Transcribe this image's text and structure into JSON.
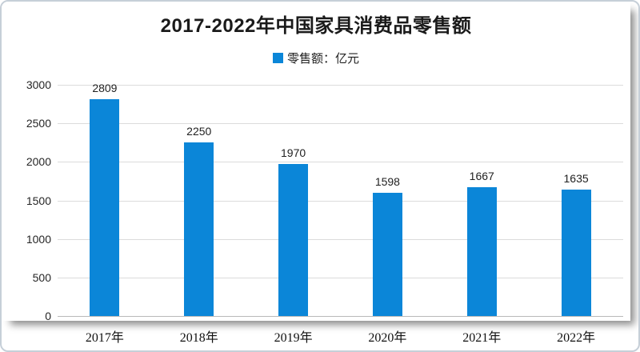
{
  "chart": {
    "title": "2017-2022年中国家具消费品零售额",
    "legend_label": "零售额：亿元"
  },
  "chart_data": {
    "type": "bar",
    "title": "2017-2022年中国家具消费品零售额",
    "legend": [
      "零售额：亿元"
    ],
    "legend_position": "top",
    "categories": [
      "2017年",
      "2018年",
      "2019年",
      "2020年",
      "2021年",
      "2022年"
    ],
    "values": [
      2809,
      2250,
      1970,
      1598,
      1667,
      1635
    ],
    "xlabel": "",
    "ylabel": "",
    "ylim": [
      0,
      3000
    ],
    "yticks": [
      0,
      500,
      1000,
      1500,
      2000,
      2500,
      3000
    ],
    "grid": true,
    "data_labels": true,
    "bar_color": "#0b86d8",
    "gridline_color": "#dcdcdc",
    "axis_line_color": "#b9b9b9"
  }
}
